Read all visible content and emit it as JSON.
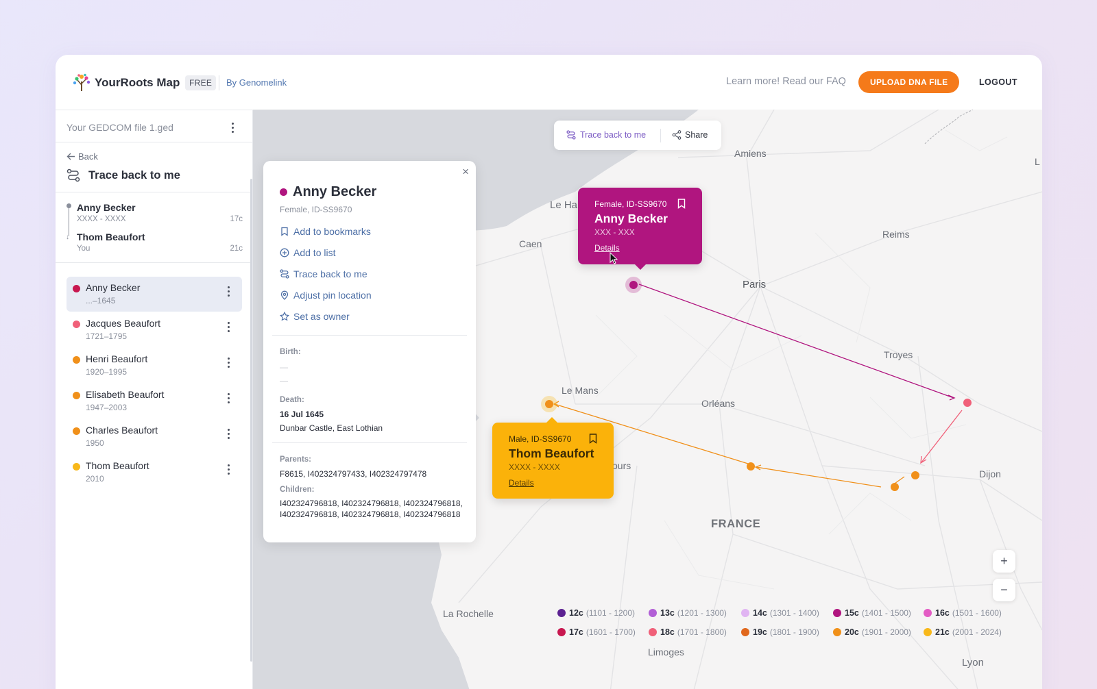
{
  "header": {
    "app_name": "YourRoots Map",
    "plan_badge": "FREE",
    "by_link": "By Genomelink",
    "faq_link": "Learn more! Read our FAQ",
    "upload_label": "UPLOAD DNA FILE",
    "logout_label": "LOGOUT"
  },
  "sidebar": {
    "file_name": "Your GEDCOM file 1.ged",
    "back_label": "Back",
    "title": "Trace back to me",
    "trace": {
      "from": {
        "name": "Anny Becker",
        "years": "XXXX - XXXX",
        "century": "17c"
      },
      "to": {
        "name": "Thom Beaufort",
        "sub": "You",
        "century": "21c"
      }
    },
    "people": [
      {
        "name": "Anny Becker",
        "years": "...–1645",
        "color": "#c8174f"
      },
      {
        "name": "Jacques Beaufort",
        "years": "1721–1795",
        "color": "#f06079"
      },
      {
        "name": "Henri Beaufort",
        "years": "1920–1995",
        "color": "#f0901a"
      },
      {
        "name": "Elisabeth Beaufort",
        "years": "1947–2003",
        "color": "#f0901a"
      },
      {
        "name": "Charles Beaufort",
        "years": "1950",
        "color": "#f0901a"
      },
      {
        "name": "Thom Beaufort",
        "years": "2010",
        "color": "#f8b81a"
      }
    ]
  },
  "map": {
    "toolbar": {
      "trace_label": "Trace back to me",
      "share_label": "Share"
    },
    "cities": {
      "amiens": "Amiens",
      "le_havre": "Le Ha",
      "caen": "Caen",
      "reims": "Reims",
      "paris": "Paris",
      "troyes": "Troyes",
      "le_mans": "Le Mans",
      "orleans": "Orléans",
      "tours": "ours",
      "dijon": "Dijon",
      "la_rochelle": "La Rochelle",
      "limoges": "Limoges",
      "lyon": "Lyon",
      "edge": "L"
    },
    "country": "FRANCE",
    "zoom_in": "+",
    "zoom_out": "−"
  },
  "detail": {
    "close": "×",
    "name": "Anny Becker",
    "sub": "Female, ID-SS9670",
    "actions": {
      "bookmark": "Add to bookmarks",
      "list": "Add to list",
      "trace": "Trace back to me",
      "pin": "Adjust pin location",
      "owner": "Set as owner"
    },
    "birth_label": "Birth:",
    "birth_date": "—",
    "birth_place": "—",
    "death_label": "Death:",
    "death_date": "16 Jul 1645",
    "death_place": "Dunbar Castle, East Lothian",
    "parents_label": "Parents:",
    "parents": "F8615, I402324797433, I402324797478",
    "children_label": "Children:",
    "children": "I402324796818, I402324796818, I402324796818, I402324796818, I402324796818, I402324796818"
  },
  "popups": {
    "anny": {
      "sub": "Female, ID-SS9670",
      "name": "Anny Becker",
      "years": "XXX - XXX",
      "details": "Details"
    },
    "thom": {
      "sub": "Male, ID-SS9670",
      "name": "Thom Beaufort",
      "years": "XXXX - XXXX",
      "details": "Details"
    }
  },
  "legend": [
    {
      "label": "12c",
      "range": "(1101 - 1200)",
      "color": "#5b2191"
    },
    {
      "label": "13c",
      "range": "(1201 - 1300)",
      "color": "#b15fd6"
    },
    {
      "label": "14c",
      "range": "(1301 - 1400)",
      "color": "#e0b4f2"
    },
    {
      "label": "15c",
      "range": "(1401 - 1500)",
      "color": "#b0157f"
    },
    {
      "label": "16c",
      "range": "(1501 - 1600)",
      "color": "#e35cc4"
    },
    {
      "label": "17c",
      "range": "(1601 - 1700)",
      "color": "#c8174f"
    },
    {
      "label": "18c",
      "range": "(1701 - 1800)",
      "color": "#f06079"
    },
    {
      "label": "19c",
      "range": "(1801 - 1900)",
      "color": "#e0671c"
    },
    {
      "label": "20c",
      "range": "(1901 - 2000)",
      "color": "#f0901a"
    },
    {
      "label": "21c",
      "range": "(2001 - 2024)",
      "color": "#f8b81a"
    }
  ]
}
